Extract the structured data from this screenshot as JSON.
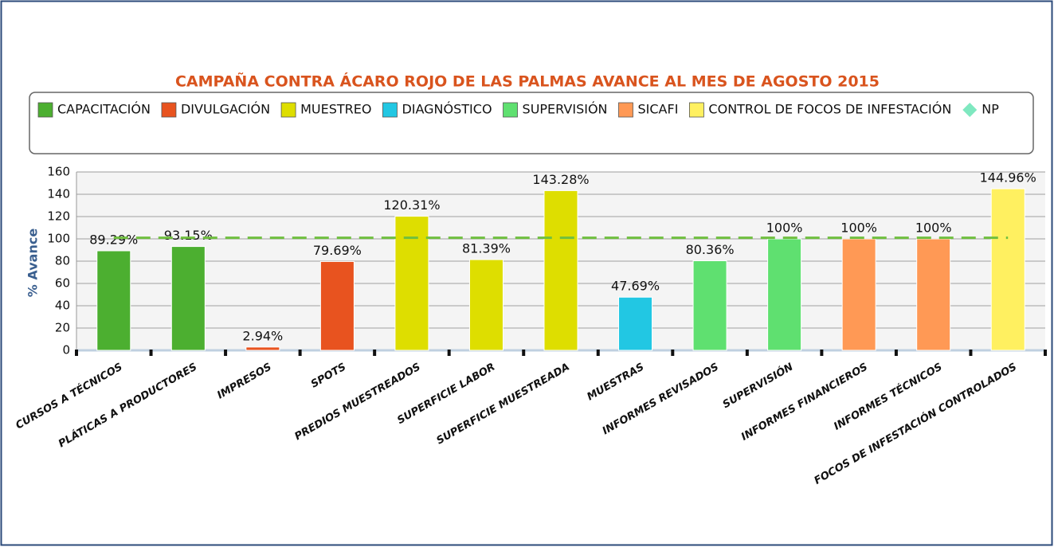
{
  "chart_data": {
    "type": "bar",
    "title": "CAMPAÑA CONTRA ÁCARO ROJO DE LAS PALMAS AVANCE AL MES DE AGOSTO 2015",
    "y_label": "% Avance",
    "categories": [
      "CURSOS A TÉCNICOS",
      "PLÁTICAS A PRODUCTORES",
      "IMPRESOS",
      "SPOTS",
      "PREDIOS MUESTREADOS",
      "SUPERFICIE LABOR",
      "SUPERFICIE MUESTREADA",
      "MUESTRAS",
      "INFORMES REVISADOS",
      "SUPERVISIÓN",
      "INFORMES FINANCIEROS",
      "INFORMES TÉCNICOS",
      "FOCOS DE INFESTACIÓN CONTROLADOS"
    ],
    "series": [
      {
        "name": "CAPACITACIÓN",
        "color": "#4caf30",
        "values": [
          89.29,
          93.15,
          null,
          null,
          null,
          null,
          null,
          null,
          null,
          null,
          null,
          null,
          null
        ],
        "value_labels": [
          "89.29%",
          "93.15%",
          null,
          null,
          null,
          null,
          null,
          null,
          null,
          null,
          null,
          null,
          null
        ]
      },
      {
        "name": "DIVULGACIÓN",
        "color": "#e8531f",
        "values": [
          null,
          null,
          2.94,
          79.69,
          null,
          null,
          null,
          null,
          null,
          null,
          null,
          null,
          null
        ],
        "value_labels": [
          null,
          null,
          "2.94%",
          "79.69%",
          null,
          null,
          null,
          null,
          null,
          null,
          null,
          null,
          null
        ]
      },
      {
        "name": "MUESTREO",
        "color": "#dede00",
        "values": [
          null,
          null,
          null,
          null,
          120.31,
          81.39,
          143.28,
          null,
          null,
          null,
          null,
          null,
          null
        ],
        "value_labels": [
          null,
          null,
          null,
          null,
          "120.31%",
          "81.39%",
          "143.28%",
          null,
          null,
          null,
          null,
          null,
          null
        ]
      },
      {
        "name": "DIAGNÓSTICO",
        "color": "#22c7e3",
        "values": [
          null,
          null,
          null,
          null,
          null,
          null,
          null,
          47.69,
          null,
          null,
          null,
          null,
          null
        ],
        "value_labels": [
          null,
          null,
          null,
          null,
          null,
          null,
          null,
          "47.69%",
          null,
          null,
          null,
          null,
          null
        ]
      },
      {
        "name": "SUPERVISIÓN",
        "color": "#5fe070",
        "values": [
          null,
          null,
          null,
          null,
          null,
          null,
          null,
          null,
          80.36,
          100,
          null,
          null,
          null
        ],
        "value_labels": [
          null,
          null,
          null,
          null,
          null,
          null,
          null,
          null,
          "80.36%",
          "100%",
          null,
          null,
          null
        ]
      },
      {
        "name": "SICAFI",
        "color": "#ff9955",
        "values": [
          null,
          null,
          null,
          null,
          null,
          null,
          null,
          null,
          null,
          null,
          100,
          100,
          null
        ],
        "value_labels": [
          null,
          null,
          null,
          null,
          null,
          null,
          null,
          null,
          null,
          null,
          "100%",
          "100%",
          null
        ]
      },
      {
        "name": "CONTROL DE FOCOS DE INFESTACIÓN",
        "color": "#fff060",
        "values": [
          null,
          null,
          null,
          null,
          null,
          null,
          null,
          null,
          null,
          null,
          null,
          null,
          144.96
        ],
        "value_labels": [
          null,
          null,
          null,
          null,
          null,
          null,
          null,
          null,
          null,
          null,
          null,
          null,
          "144.96%"
        ]
      },
      {
        "name": "NP",
        "type": "line",
        "color": "#7fe8c0",
        "line_color": "#6fbf3f",
        "values": [
          101,
          101,
          101,
          101,
          101,
          101,
          101,
          101,
          101,
          101,
          101,
          101,
          101
        ]
      }
    ],
    "ylim": [
      0,
      160
    ],
    "yticks": [
      0,
      20,
      40,
      60,
      80,
      100,
      120,
      140,
      160
    ],
    "grid": true
  }
}
